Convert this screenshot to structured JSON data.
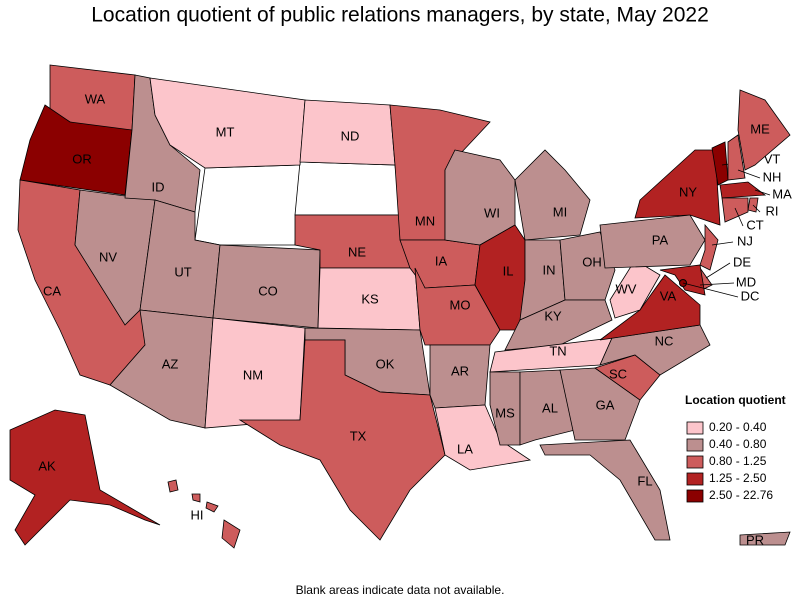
{
  "title": "Location quotient of public relations managers, by state, May 2022",
  "legend": {
    "title": "Location quotient",
    "items": [
      {
        "label": "0.20 - 0.40",
        "color": "#fcc5cb"
      },
      {
        "label": "0.40 - 0.80",
        "color": "#bc8f8f"
      },
      {
        "label": "0.80 - 1.25",
        "color": "#cd5c5c"
      },
      {
        "label": "1.25 - 2.50",
        "color": "#b22222"
      },
      {
        "label": "2.50 - 22.76",
        "color": "#8b0000"
      }
    ]
  },
  "states": [
    {
      "label": "WA",
      "class": 2
    },
    {
      "label": "OR",
      "class": 4
    },
    {
      "label": "CA",
      "class": 2
    },
    {
      "label": "NV",
      "class": 1
    },
    {
      "label": "ID",
      "class": 1
    },
    {
      "label": "MT",
      "class": 0
    },
    {
      "label": "UT",
      "class": 1
    },
    {
      "label": "AZ",
      "class": 1
    },
    {
      "label": "CO",
      "class": 1
    },
    {
      "label": "NM",
      "class": 0
    },
    {
      "label": "ND",
      "class": 0
    },
    {
      "label": "NE",
      "class": 2
    },
    {
      "label": "KS",
      "class": 0
    },
    {
      "label": "OK",
      "class": 1
    },
    {
      "label": "TX",
      "class": 2
    },
    {
      "label": "MN",
      "class": 2
    },
    {
      "label": "IA",
      "class": 2
    },
    {
      "label": "MO",
      "class": 2
    },
    {
      "label": "AR",
      "class": 1
    },
    {
      "label": "LA",
      "class": 0
    },
    {
      "label": "WI",
      "class": 1
    },
    {
      "label": "IL",
      "class": 3
    },
    {
      "label": "MI",
      "class": 1
    },
    {
      "label": "IN",
      "class": 1
    },
    {
      "label": "OH",
      "class": 1
    },
    {
      "label": "KY",
      "class": 1
    },
    {
      "label": "TN",
      "class": 0
    },
    {
      "label": "MS",
      "class": 1
    },
    {
      "label": "AL",
      "class": 1
    },
    {
      "label": "GA",
      "class": 1
    },
    {
      "label": "FL",
      "class": 1
    },
    {
      "label": "SC",
      "class": 2
    },
    {
      "label": "NC",
      "class": 1
    },
    {
      "label": "VA",
      "class": 3
    },
    {
      "label": "WV",
      "class": 0
    },
    {
      "label": "PA",
      "class": 1
    },
    {
      "label": "NY",
      "class": 3
    },
    {
      "label": "VT",
      "class": 4
    },
    {
      "label": "NH",
      "class": 2
    },
    {
      "label": "ME",
      "class": 2
    },
    {
      "label": "MA",
      "class": 3
    },
    {
      "label": "RI",
      "class": 2
    },
    {
      "label": "CT",
      "class": 2
    },
    {
      "label": "NJ",
      "class": 2
    },
    {
      "label": "DE",
      "class": 2
    },
    {
      "label": "MD",
      "class": 3
    },
    {
      "label": "DC",
      "class": 4
    },
    {
      "label": "AK",
      "class": 3
    },
    {
      "label": "HI",
      "class": 2
    },
    {
      "label": "PR",
      "class": 1
    }
  ],
  "footnote": "Blank areas indicate data not available."
}
